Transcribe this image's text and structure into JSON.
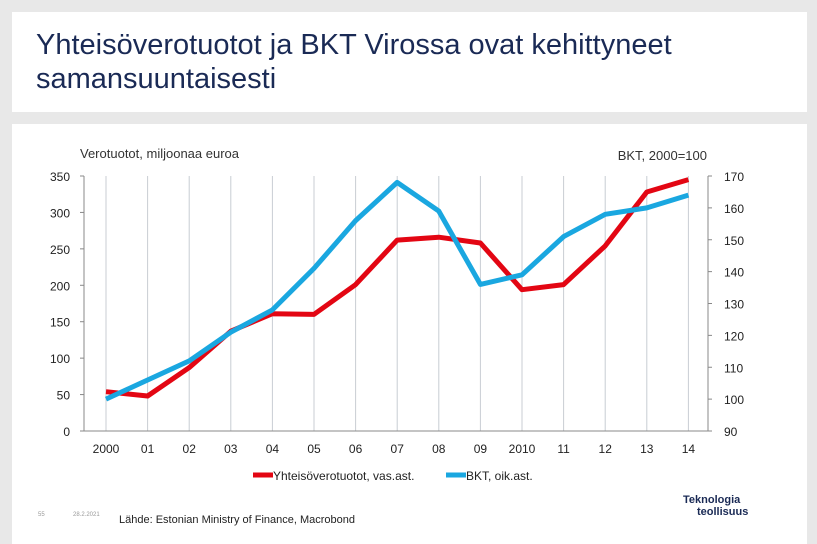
{
  "slide": {
    "title": "Yhteisöverotuotot ja BKT Virossa ovat kehittyneet samansuuntaisesti",
    "number": "55",
    "date": "28.2.2021",
    "source": "Lähde: Estonian Ministry of Finance, Macrobond",
    "logo_line1": "Teknologia",
    "logo_line2": "teollisuus"
  },
  "chart_data": {
    "type": "line",
    "left_axis_title": "Verotuotot, miljoonaa euroa",
    "right_axis_title": "BKT, 2000=100",
    "categories": [
      "2000",
      "01",
      "02",
      "03",
      "04",
      "05",
      "06",
      "07",
      "08",
      "09",
      "2010",
      "11",
      "12",
      "13",
      "14"
    ],
    "left_ylim": [
      0,
      350
    ],
    "left_ticks": [
      "0",
      "50",
      "100",
      "150",
      "200",
      "250",
      "300",
      "350"
    ],
    "right_ylim": [
      90,
      170
    ],
    "right_ticks": [
      "90",
      "100",
      "110",
      "120",
      "130",
      "140",
      "150",
      "160",
      "170"
    ],
    "grid": "vertical",
    "legend_position": "bottom",
    "series": [
      {
        "name": "Yhteisöverotuotot, vas.ast.",
        "axis": "left",
        "color": "#e30613",
        "values": [
          54,
          48,
          87,
          137,
          161,
          160,
          201,
          262,
          266,
          258,
          194,
          201,
          254,
          328,
          345
        ]
      },
      {
        "name": "BKT, oik.ast.",
        "axis": "right",
        "color": "#1aa7e0",
        "values": [
          100,
          106,
          112,
          121,
          128,
          141,
          156,
          168,
          159,
          136,
          139,
          151,
          158,
          160,
          164
        ]
      }
    ]
  }
}
